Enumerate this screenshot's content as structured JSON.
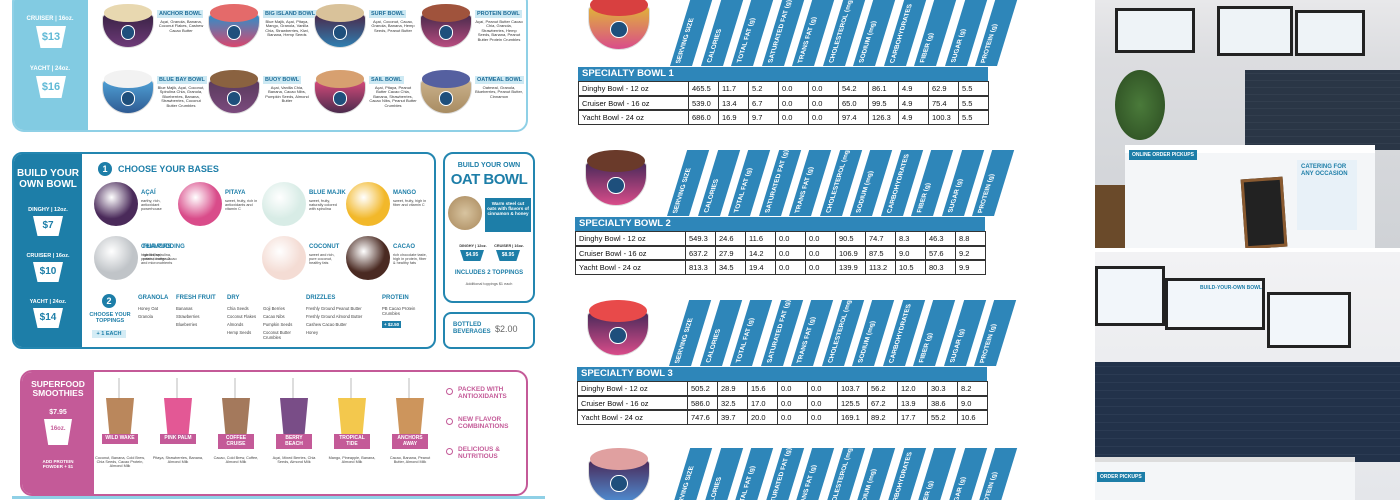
{
  "menu": {
    "top": {
      "sizes": [
        {
          "label": "CRUISER | 16oz.",
          "price": "$13"
        },
        {
          "label": "YACHT | 24oz.",
          "price": "$16"
        }
      ],
      "bowls": [
        {
          "name": "ANCHOR BOWL",
          "desc": "Açaí, Granola, Banana, Coconut Flakes, Cashew Cacao Butter"
        },
        {
          "name": "BIG ISLAND BOWL",
          "desc": "Blue Majik, Açaí, Pitaya, Mango, Granola, Vanilla Chia, Strawberries, Kiwi, Banana, Hemp Seeds"
        },
        {
          "name": "SURF BOWL",
          "desc": "Açaí, Coconut, Cacao, Granola, Banana, Hemp Seeds, Peanut Butter"
        },
        {
          "name": "PROTEIN BOWL",
          "desc": "Açaí, Peanut Butter Cacao Chia, Granola, Strawberries, Hemp Seeds, Banana, Peanut Butter Protein Crumbles"
        },
        {
          "name": "BLUE BAY BOWL",
          "desc": "Blue Majik, Açaí, Coconut, Spirulina Chia, Granola, Blueberries, Banana, Strawberries, Coconut Butter Crumbles"
        },
        {
          "name": "BUOY BOWL",
          "desc": "Açaí, Vanilla Chia, Banana, Cacao Nibs, Pumpkin Seeds, Almond Butter"
        },
        {
          "name": "SAIL BOWL",
          "desc": "Açaí, Pitaya, Peanut Butter Cacao Chia, Banana, Strawberries, Cacao Nibs, Peanut Butter Crumbles"
        },
        {
          "name": "OATMEAL BOWL",
          "desc": "Oatmeal, Granola, Blueberries, Peanut Butter, Cinnamon"
        }
      ]
    },
    "build": {
      "title": "BUILD YOUR OWN BOWL",
      "sizes": [
        {
          "label": "DINGHY | 12oz.",
          "price": "$7"
        },
        {
          "label": "CRUISER | 16oz.",
          "price": "$10"
        },
        {
          "label": "YACHT | 24oz.",
          "price": "$14"
        }
      ],
      "step1": {
        "num": "1",
        "title": "CHOOSE YOUR BASES"
      },
      "bases": [
        {
          "name": "AÇAÍ",
          "desc": "earthy, rich, antioxidant powerhouse"
        },
        {
          "name": "PITAYA",
          "desc": "sweet, fruity, rich in antioxidants and vitamin C"
        },
        {
          "name": "BLUE MAJIK",
          "desc": "sweet, fruity, naturally colored with spirulina"
        },
        {
          "name": "MANGO",
          "desc": "sweet, fruity, high in fiber and vitamin C"
        },
        {
          "name": "CHIA PUDDING",
          "desc": "high in fiber, protein, omega-3 and micronutrients"
        },
        {
          "name": "FLAVORS",
          "desc": "vanilla, spirulina, peanut butter cacao"
        },
        {
          "name": "COCONUT",
          "desc": "sweet and rich, pure coconut, healthy fats"
        },
        {
          "name": "CACAO",
          "desc": "rich chocolate taste, high in protein, fiber & healthy fats"
        }
      ],
      "step2": {
        "num": "2",
        "title": "CHOOSE YOUR TOPPINGS",
        "price": "+ 1 EACH"
      },
      "toppings": [
        {
          "title": "GRANOLA",
          "items": [
            "Honey Oat",
            "Granola"
          ]
        },
        {
          "title": "FRESH FRUIT",
          "items": [
            "Bananas",
            "Strawberries",
            "Blueberries"
          ]
        },
        {
          "title": "DRY",
          "items": [
            "Chia Seeds",
            "Coconut Flakes",
            "Almonds",
            "Hemp Seeds",
            "Goji Berries",
            "Cacao Nibs",
            "Pumpkin Seeds",
            "Coconut Butter Crumbles"
          ]
        },
        {
          "title": "DRIZZLES",
          "items": [
            "Freshly Ground Peanut Butter",
            "Freshly Ground Almond Butter",
            "Cashew Cacao Butter",
            "Honey"
          ]
        },
        {
          "title": "PROTEIN",
          "items": [
            "PB Cacao Protein Crumbles"
          ],
          "price": "+ $2.50"
        }
      ]
    },
    "oat": {
      "kicker": "BUILD YOUR OWN",
      "title": "OAT BOWL",
      "desc": "Warm steel cut oats with flavors of cinnamon & honey",
      "sizes": [
        {
          "label": "DINGHY | 12oz.",
          "price": "$4.95"
        },
        {
          "label": "CRUISER | 16oz.",
          "price": "$8.95"
        }
      ],
      "includes": "INCLUDES 2 TOPPINGS",
      "note": "Additional toppings $1 each"
    },
    "bottled": {
      "label": "BOTTLED BEVERAGES",
      "price": "$2.00"
    },
    "smoothies": {
      "title": "SUPERFOOD SMOOTHIES",
      "price": "$7.95",
      "size": "16oz.",
      "addon": "ADD PROTEIN POWDER + $1",
      "items": [
        {
          "name": "WILD WAKE",
          "desc": "Coconut, Banana, Cold Brew, Chia Seeds, Cacao Protein, Almond Milk"
        },
        {
          "name": "PINK PALM",
          "desc": "Pitaya, Strawberries, Banana, Almond Milk"
        },
        {
          "name": "COFFEE CRUISE",
          "desc": "Cacao, Cold Brew, Coffee, Almond Milk"
        },
        {
          "name": "BERRY BEACH",
          "desc": "Açaí, Mixed Berries, Chia Seeds, Almond Milk"
        },
        {
          "name": "TROPICAL TIDE",
          "desc": "Mango, Pineapple, Banana, Almond Milk"
        },
        {
          "name": "ANCHORS AWAY",
          "desc": "Cacao, Banana, Peanut Butter, Almond Milk"
        }
      ],
      "benefits": [
        "PACKED WITH ANTIOXIDANTS",
        "NEW FLAVOR COMBINATIONS",
        "DELICIOUS & NUTRITIOUS"
      ]
    }
  },
  "nutrition": {
    "headers": [
      "SERVING SIZE",
      "CALORIES",
      "TOTAL FAT (g)",
      "SATURATED FAT (g)",
      "TRANS FAT (g)",
      "CHOLESTEROL (mg)",
      "SODIUM (mg)",
      "CARBOHYDRATES",
      "FIBER (g)",
      "SUGAR (g)",
      "PROTEIN (g)"
    ],
    "tables": [
      {
        "title": "SPECIALTY BOWL 1",
        "rows": [
          {
            "label": "Dinghy Bowl - 12 oz",
            "values": [
              "465.5",
              "11.7",
              "5.2",
              "0.0",
              "0.0",
              "54.2",
              "86.1",
              "4.9",
              "62.9",
              "5.5"
            ]
          },
          {
            "label": "Cruiser Bowl - 16 oz",
            "values": [
              "539.0",
              "13.4",
              "6.7",
              "0.0",
              "0.0",
              "65.0",
              "99.5",
              "4.9",
              "75.4",
              "5.5"
            ]
          },
          {
            "label": "Yacht Bowl - 24 oz",
            "values": [
              "686.0",
              "16.9",
              "9.7",
              "0.0",
              "0.0",
              "97.4",
              "126.3",
              "4.9",
              "100.3",
              "5.5"
            ]
          }
        ]
      },
      {
        "title": "SPECIALTY BOWL 2",
        "rows": [
          {
            "label": "Dinghy Bowl - 12 oz",
            "values": [
              "549.3",
              "24.6",
              "11.6",
              "0.0",
              "0.0",
              "90.5",
              "74.7",
              "8.3",
              "46.3",
              "8.8"
            ]
          },
          {
            "label": "Cruiser Bowl - 16 oz",
            "values": [
              "637.2",
              "27.9",
              "14.2",
              "0.0",
              "0.0",
              "106.9",
              "87.5",
              "9.0",
              "57.6",
              "9.2"
            ]
          },
          {
            "label": "Yacht Bowl - 24 oz",
            "values": [
              "813.3",
              "34.5",
              "19.4",
              "0.0",
              "0.0",
              "139.9",
              "113.2",
              "10.5",
              "80.3",
              "9.9"
            ]
          }
        ]
      },
      {
        "title": "SPECIALTY BOWL 3",
        "rows": [
          {
            "label": "Dinghy Bowl - 12 oz",
            "values": [
              "505.2",
              "28.9",
              "15.6",
              "0.0",
              "0.0",
              "103.7",
              "56.2",
              "12.0",
              "30.3",
              "8.2"
            ]
          },
          {
            "label": "Cruiser Bowl - 16 oz",
            "values": [
              "586.0",
              "32.5",
              "17.0",
              "0.0",
              "0.0",
              "125.5",
              "67.2",
              "13.9",
              "38.6",
              "9.0"
            ]
          },
          {
            "label": "Yacht Bowl - 24 oz",
            "values": [
              "747.6",
              "39.7",
              "20.0",
              "0.0",
              "0.0",
              "169.1",
              "89.2",
              "17.7",
              "55.2",
              "10.6"
            ]
          }
        ]
      }
    ]
  },
  "photos": {
    "signs": [
      "ONLINE ORDER PICKUPS",
      "CATERING FOR ANY OCCASION",
      "BUILD-YOUR-OWN BOWL",
      "ORDER PICKUPS"
    ]
  }
}
